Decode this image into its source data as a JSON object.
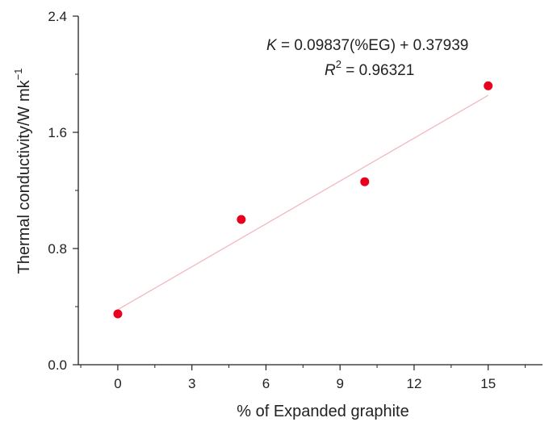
{
  "chart_data": {
    "type": "scatter",
    "xlabel": "% of Expanded graphite",
    "ylabel": "Thermal conductivity/W mk",
    "ylabel_superscript": "−1",
    "xlim": [
      -1.6,
      17.2
    ],
    "ylim": [
      0,
      2.4
    ],
    "x_ticks": [
      0,
      3,
      6,
      9,
      12,
      15
    ],
    "x_tick_labels": [
      "0",
      "3",
      "6",
      "9",
      "12",
      "15"
    ],
    "y_ticks": [
      0.0,
      0.8,
      1.6,
      2.4
    ],
    "y_tick_labels": [
      "0.0",
      "0.8",
      "1.6",
      "2.4"
    ],
    "y_minor_ticks": [
      0.4,
      1.2,
      2.0
    ],
    "grid": false,
    "series": [
      {
        "x": [
          0,
          5,
          10,
          15
        ],
        "y": [
          0.35,
          1.0,
          1.26,
          1.92
        ],
        "color": "#e8001c"
      }
    ],
    "fit_line": {
      "slope": 0.09837,
      "intercept": 0.37939,
      "x_range": [
        0,
        15
      ],
      "color": "#f2b8c0"
    },
    "annotation": {
      "line1_var": "K",
      "line1_rest": " = 0.09837(%EG) + 0.37939",
      "line2_var": "R",
      "line2_sup": "2",
      "line2_rest": " = 0.96321"
    }
  }
}
